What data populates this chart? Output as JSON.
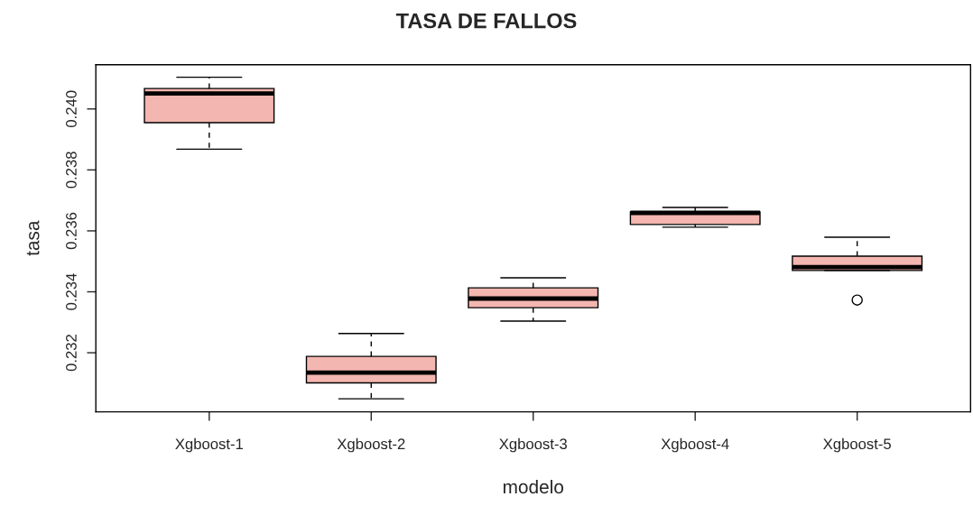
{
  "chart_data": {
    "type": "box",
    "title": "TASA DE FALLOS",
    "xlabel": "modelo",
    "ylabel": "tasa",
    "categories": [
      "Xgboost-1",
      "Xgboost-2",
      "Xgboost-3",
      "Xgboost-4",
      "Xgboost-5"
    ],
    "color": "#f4b6b0",
    "boxes": [
      {
        "low": 0.23868,
        "q1": 0.23955,
        "median": 0.24051,
        "q3": 0.24067,
        "high": 0.24104
      },
      {
        "low": 0.23049,
        "q1": 0.23101,
        "median": 0.23135,
        "q3": 0.23188,
        "high": 0.23263
      },
      {
        "low": 0.23304,
        "q1": 0.23348,
        "median": 0.23378,
        "q3": 0.23413,
        "high": 0.23446
      },
      {
        "low": 0.23612,
        "q1": 0.23621,
        "median": 0.23659,
        "q3": 0.23662,
        "high": 0.23677
      },
      {
        "low": 0.2347,
        "q1": 0.2347,
        "median": 0.23481,
        "q3": 0.23517,
        "high": 0.23579,
        "outliers": [
          0.23373
        ]
      }
    ],
    "ylim": [
      0.23006,
      0.24145
    ],
    "yticks": [
      {
        "value": 0.232,
        "label": "0.232"
      },
      {
        "value": 0.234,
        "label": "0.234"
      },
      {
        "value": 0.236,
        "label": "0.236"
      },
      {
        "value": 0.238,
        "label": "0.238"
      },
      {
        "value": 0.24,
        "label": "0.240"
      }
    ],
    "grid": false,
    "legend": false
  }
}
